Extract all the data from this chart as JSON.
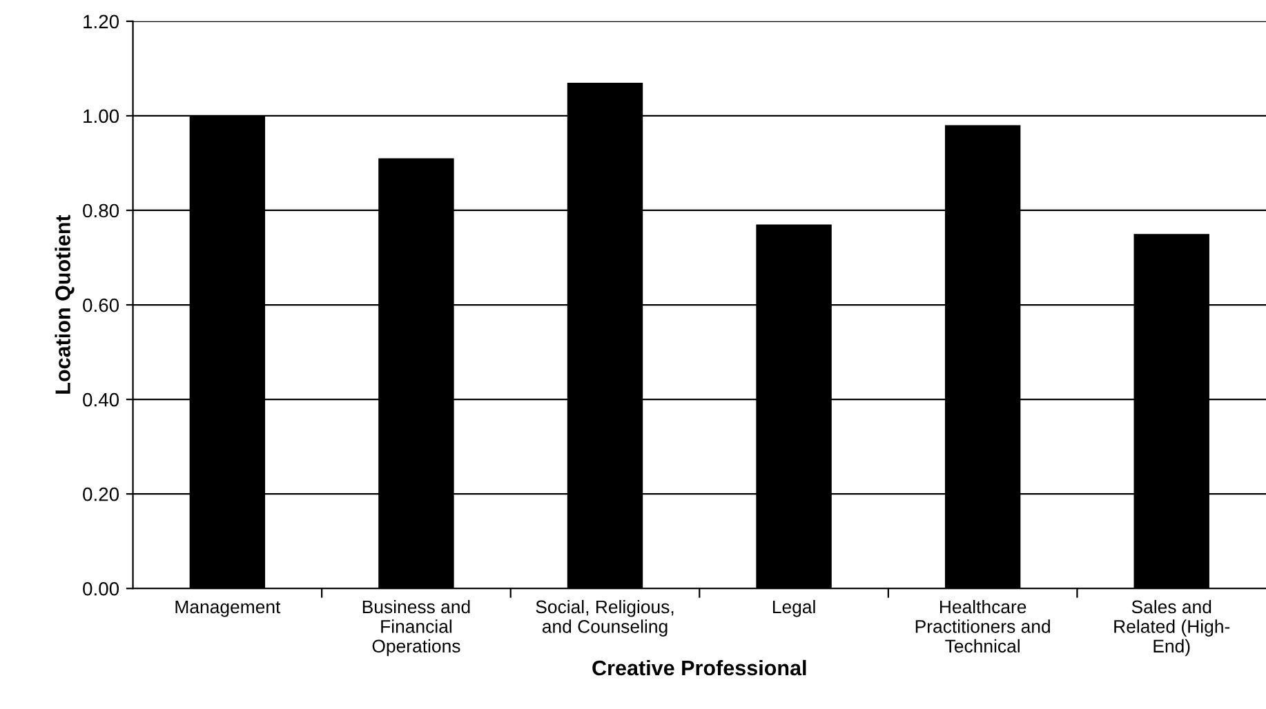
{
  "chart_data": {
    "type": "bar",
    "xlabel": "Creative Professional",
    "ylabel": "Location Quotient",
    "categories": [
      "Management",
      "Business and\nFinancial\nOperations",
      "Social, Religious,\nand Counseling",
      "Legal",
      "Healthcare\nPractitioners and\nTechnical",
      "Sales and\nRelated (High-\nEnd)"
    ],
    "values": [
      1.0,
      0.91,
      1.07,
      0.77,
      0.98,
      0.75
    ],
    "color": "#000000",
    "ylim": [
      0,
      1.2
    ],
    "yticks": [
      {
        "value": 0,
        "label": "0.00"
      },
      {
        "value": 0.2,
        "label": "0.20"
      },
      {
        "value": 0.4,
        "label": "0.40"
      },
      {
        "value": 0.6,
        "label": "0.60"
      },
      {
        "value": 0.8,
        "label": "0.80"
      },
      {
        "value": 1.0,
        "label": "1.00"
      },
      {
        "value": 1.2,
        "label": "1.20"
      }
    ],
    "grid": "y"
  }
}
